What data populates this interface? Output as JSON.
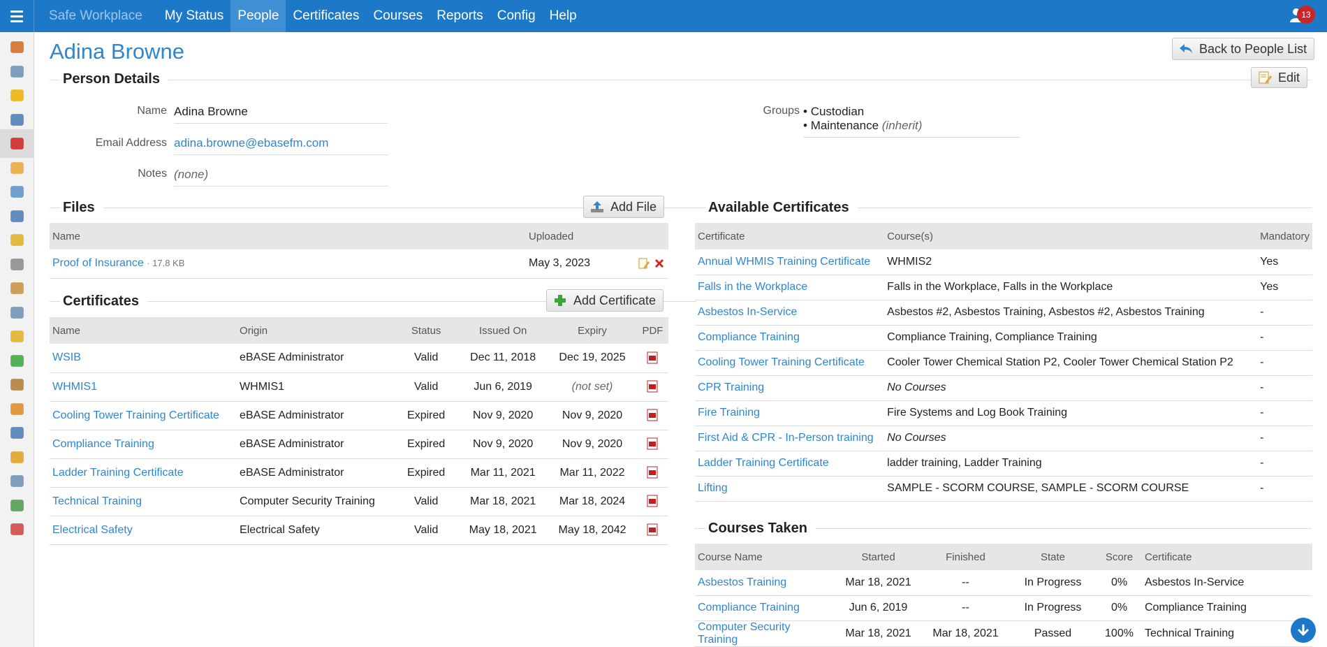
{
  "nav": {
    "brand": "Safe Workplace",
    "items": [
      "My Status",
      "People",
      "Certificates",
      "Courses",
      "Reports",
      "Config",
      "Help"
    ],
    "active": "People",
    "notification_count": "13"
  },
  "page": {
    "title": "Adina Browne",
    "back_button": "Back to People List"
  },
  "person_details": {
    "section_title": "Person Details",
    "edit_button": "Edit",
    "name_label": "Name",
    "name_value": "Adina Browne",
    "email_label": "Email Address",
    "email_value": "adina.browne@ebasefm.com",
    "notes_label": "Notes",
    "notes_value": "(none)",
    "groups_label": "Groups",
    "groups": [
      {
        "name": "Custodian",
        "note": ""
      },
      {
        "name": "Maintenance",
        "note": "(inherit)"
      }
    ]
  },
  "files": {
    "section_title": "Files",
    "add_button": "Add File",
    "columns": [
      "Name",
      "Uploaded"
    ],
    "rows": [
      {
        "name": "Proof of Insurance",
        "size": "· 17.8 KB",
        "uploaded": "May 3, 2023"
      }
    ]
  },
  "certificates": {
    "section_title": "Certificates",
    "add_button": "Add Certificate",
    "columns": [
      "Name",
      "Origin",
      "Status",
      "Issued On",
      "Expiry",
      "PDF"
    ],
    "rows": [
      {
        "name": "WSIB",
        "origin": "eBASE Administrator",
        "status": "Valid",
        "issued": "Dec 11, 2018",
        "expiry": "Dec 19, 2025"
      },
      {
        "name": "WHMIS1",
        "origin": "WHMIS1",
        "status": "Valid",
        "issued": "Jun 6, 2019",
        "expiry": "(not set)"
      },
      {
        "name": "Cooling Tower Training Certificate",
        "origin": "eBASE Administrator",
        "status": "Expired",
        "issued": "Nov 9, 2020",
        "expiry": "Nov 9, 2020"
      },
      {
        "name": "Compliance Training",
        "origin": "eBASE Administrator",
        "status": "Expired",
        "issued": "Nov 9, 2020",
        "expiry": "Nov 9, 2020"
      },
      {
        "name": "Ladder Training Certificate",
        "origin": "eBASE Administrator",
        "status": "Expired",
        "issued": "Mar 11, 2021",
        "expiry": "Mar 11, 2022"
      },
      {
        "name": "Technical Training",
        "origin": "Computer Security Training",
        "status": "Valid",
        "issued": "Mar 18, 2021",
        "expiry": "Mar 18, 2024"
      },
      {
        "name": "Electrical Safety",
        "origin": "Electrical Safety",
        "status": "Valid",
        "issued": "May 18, 2021",
        "expiry": "May 18, 2042"
      }
    ]
  },
  "available_certificates": {
    "section_title": "Available Certificates",
    "columns": [
      "Certificate",
      "Course(s)",
      "Mandatory"
    ],
    "rows": [
      {
        "certificate": "Annual WHMIS Training Certificate",
        "courses": "WHMIS2",
        "italic": false,
        "mandatory": "Yes"
      },
      {
        "certificate": "Falls in the Workplace",
        "courses": "Falls in the Workplace, Falls in the Workplace",
        "italic": false,
        "mandatory": "Yes"
      },
      {
        "certificate": "Asbestos In-Service",
        "courses": "Asbestos #2, Asbestos Training, Asbestos #2, Asbestos Training",
        "italic": false,
        "mandatory": "-"
      },
      {
        "certificate": "Compliance Training",
        "courses": "Compliance Training, Compliance Training",
        "italic": false,
        "mandatory": "-"
      },
      {
        "certificate": "Cooling Tower Training Certificate",
        "courses": "Cooler Tower Chemical Station P2, Cooler Tower Chemical Station P2",
        "italic": false,
        "mandatory": "-"
      },
      {
        "certificate": "CPR Training",
        "courses": "No Courses",
        "italic": true,
        "mandatory": "-"
      },
      {
        "certificate": "Fire Training",
        "courses": "Fire Systems and Log Book Training",
        "italic": false,
        "mandatory": "-"
      },
      {
        "certificate": "First Aid & CPR - In-Person training",
        "courses": "No Courses",
        "italic": true,
        "mandatory": "-"
      },
      {
        "certificate": "Ladder Training Certificate",
        "courses": "ladder training, Ladder Training",
        "italic": false,
        "mandatory": "-"
      },
      {
        "certificate": "Lifting",
        "courses": "SAMPLE - SCORM COURSE, SAMPLE - SCORM COURSE",
        "italic": false,
        "mandatory": "-"
      }
    ]
  },
  "courses_taken": {
    "section_title": "Courses Taken",
    "columns": [
      "Course Name",
      "Started",
      "Finished",
      "State",
      "Score",
      "Certificate"
    ],
    "rows": [
      {
        "course": "Asbestos Training",
        "started": "Mar 18, 2021",
        "finished": "--",
        "state": "In Progress",
        "score": "0%",
        "certificate": "Asbestos In-Service"
      },
      {
        "course": "Compliance Training",
        "started": "Jun 6, 2019",
        "finished": "--",
        "state": "In Progress",
        "score": "0%",
        "certificate": "Compliance Training"
      },
      {
        "course": "Computer Security Training",
        "started": "Mar 18, 2021",
        "finished": "Mar 18, 2021",
        "state": "Passed",
        "score": "100%",
        "certificate": "Technical Training"
      }
    ]
  },
  "sidebar": {
    "icons": [
      "home-icon",
      "documents-icon",
      "hard-hat-icon",
      "monitors-icon",
      "first-aid-icon",
      "bus-icon",
      "vehicle-icon",
      "screen-search-icon",
      "hazard-person-icon",
      "wrench-icon",
      "checklist-icon",
      "magnify-document-icon",
      "person-warning-icon",
      "puzzle-icon",
      "notebook-icon",
      "package-icon",
      "alarm-clock-icon",
      "key-icon",
      "truck-icon",
      "notepad-icon",
      "calendar-icon"
    ],
    "active_index": 4
  },
  "colors": {
    "nav_bg": "#1e78c8",
    "link": "#2f86cf",
    "badge": "#c9262a"
  }
}
